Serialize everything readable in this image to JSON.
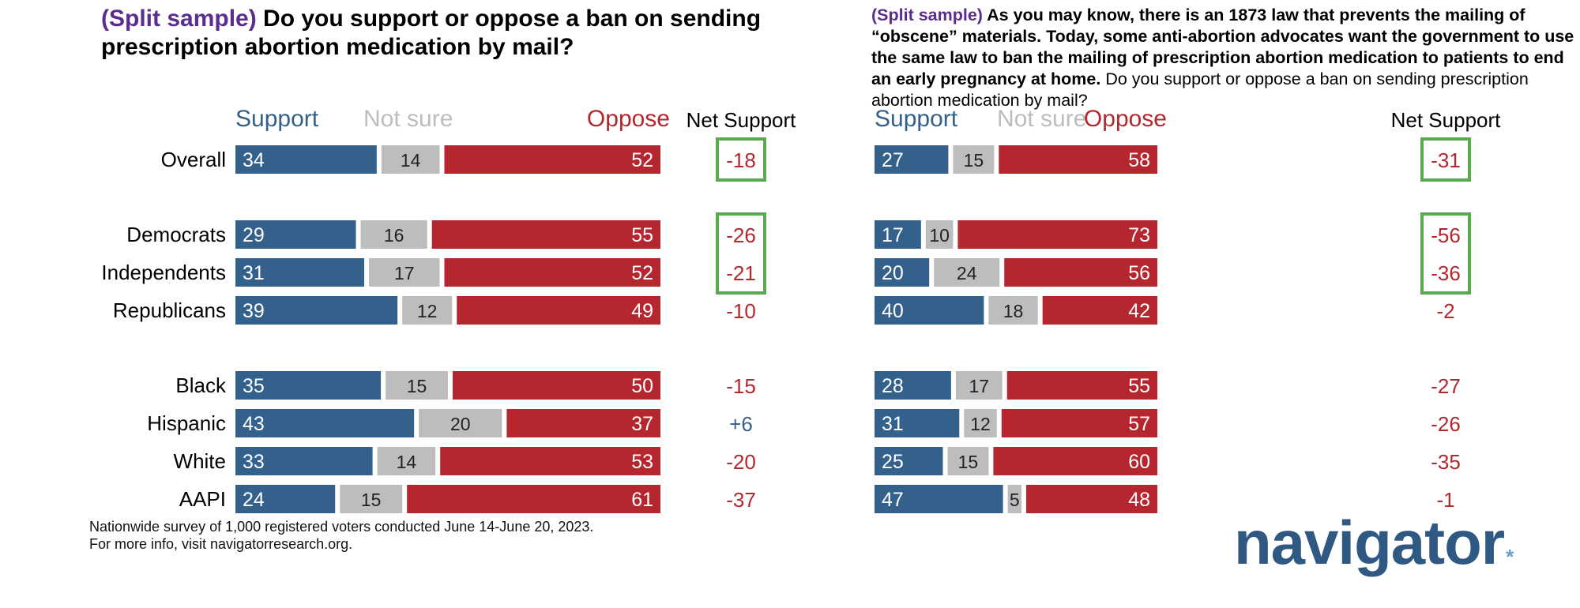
{
  "colors": {
    "support": "#33618c",
    "not_sure": "#bdbdbd",
    "oppose": "#b6262e",
    "tag": "#5b2d8e",
    "highlight_box": "#5aa850",
    "net_negative": "#b6262e",
    "net_positive": "#33618c"
  },
  "left_title": {
    "tag": "(Split sample)",
    "text": " Do you support or oppose a ban on sending prescription abortion medication by mail?"
  },
  "right_title": {
    "tag": "(Split sample)",
    "bold_text": " As you may know, there is an 1873 law that prevents the mailing of “obscene” materials. Today, some anti-abortion advocates want the government to use the same law to ban the mailing of prescription abortion medication to patients to end an early pregnancy at home.",
    "text": " Do you support or oppose a ban on sending prescription abortion medication by mail?"
  },
  "footnote": {
    "line1": "Nationwide survey of 1,000 registered voters conducted June 14-June 20, 2023.",
    "line2": "For more info, visit navigatorresearch.org."
  },
  "logo": {
    "text": "navigator",
    "mark": "*"
  },
  "chart_data": [
    {
      "type": "bar",
      "stacked": true,
      "orientation": "horizontal",
      "legend": [
        "Support",
        "Not sure",
        "Oppose"
      ],
      "net_label": "Net Support",
      "categories": [
        "Overall",
        "Democrats",
        "Independents",
        "Republicans",
        "Black",
        "Hispanic",
        "White",
        "AAPI"
      ],
      "series": [
        {
          "name": "Support",
          "values": [
            34,
            29,
            31,
            39,
            35,
            43,
            33,
            24
          ]
        },
        {
          "name": "Not sure",
          "values": [
            14,
            16,
            17,
            12,
            15,
            20,
            14,
            15
          ]
        },
        {
          "name": "Oppose",
          "values": [
            52,
            55,
            52,
            49,
            50,
            37,
            53,
            61
          ]
        }
      ],
      "net_support": [
        "-18",
        "-26",
        "-21",
        "-10",
        "-15",
        "+6",
        "-20",
        "-37"
      ],
      "highlighted": [
        "Overall",
        "Democrats",
        "Independents"
      ]
    },
    {
      "type": "bar",
      "stacked": true,
      "orientation": "horizontal",
      "legend": [
        "Support",
        "Not sure",
        "Oppose"
      ],
      "net_label": "Net Support",
      "categories": [
        "Overall",
        "Democrats",
        "Independents",
        "Republicans",
        "Black",
        "Hispanic",
        "White",
        "AAPI"
      ],
      "series": [
        {
          "name": "Support",
          "values": [
            27,
            17,
            20,
            40,
            28,
            31,
            25,
            47
          ]
        },
        {
          "name": "Not sure",
          "values": [
            15,
            10,
            24,
            18,
            17,
            12,
            15,
            5
          ]
        },
        {
          "name": "Oppose",
          "values": [
            58,
            73,
            56,
            42,
            55,
            57,
            60,
            48
          ]
        }
      ],
      "net_support": [
        "-31",
        "-56",
        "-36",
        "-2",
        "-27",
        "-26",
        "-35",
        "-1"
      ],
      "highlighted": [
        "Overall",
        "Democrats",
        "Independents"
      ]
    }
  ]
}
